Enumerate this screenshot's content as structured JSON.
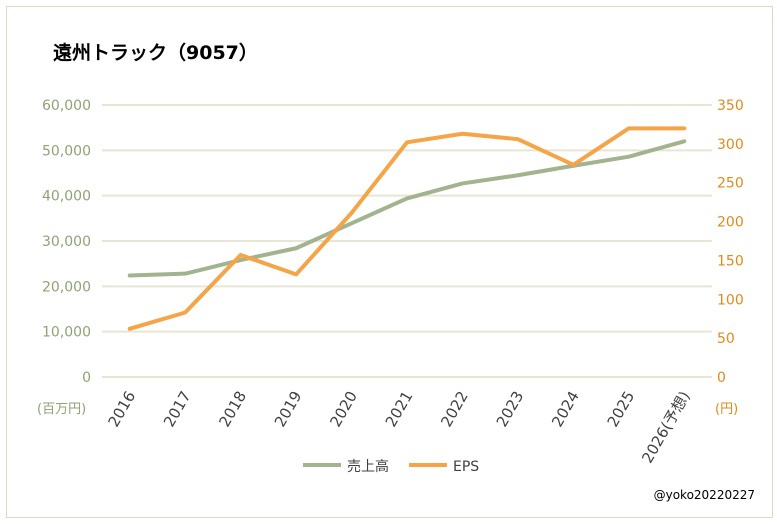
{
  "chart_data": {
    "type": "line",
    "title": "遠州トラック（9057）",
    "categories": [
      "2016",
      "2017",
      "2018",
      "2019",
      "2020",
      "2021",
      "2022",
      "2023",
      "2024",
      "2025",
      "2026(予想)"
    ],
    "series": [
      {
        "name": "売上高",
        "axis": "left",
        "color": "#a2b38f",
        "values": [
          22400,
          22800,
          25800,
          28400,
          33900,
          39400,
          42700,
          44500,
          46600,
          48600,
          52000
        ]
      },
      {
        "name": "EPS",
        "axis": "right",
        "color": "#f5a447",
        "values": [
          62,
          83,
          157,
          132,
          211,
          302,
          313,
          306,
          273,
          320,
          320
        ]
      }
    ],
    "left_axis": {
      "ylim": [
        0,
        60000
      ],
      "ticks": [
        "0",
        "10,000",
        "20,000",
        "30,000",
        "40,000",
        "50,000",
        "60,000"
      ],
      "unit": "(百万円)",
      "color": "#8fa374"
    },
    "right_axis": {
      "ylim": [
        0,
        350
      ],
      "ticks": [
        "0",
        "50",
        "100",
        "150",
        "200",
        "250",
        "300",
        "350"
      ],
      "unit": "(円)",
      "color": "#e08a1e"
    },
    "grid": true,
    "legend": "bottom",
    "annotation": "@yoko20220227"
  }
}
